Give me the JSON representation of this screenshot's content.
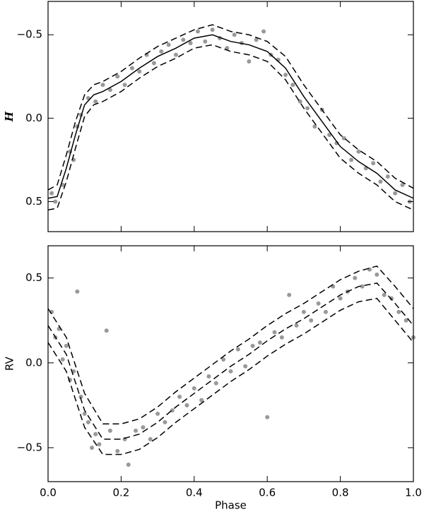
{
  "chart_data": [
    {
      "type": "scatter",
      "ylabel": "H",
      "color": "#999999",
      "xlim": [
        0,
        1
      ],
      "xticks": [
        0,
        0.2,
        0.4,
        0.6,
        0.8,
        1
      ],
      "show_xticklabels": false,
      "ylim": [
        0.68,
        -0.7
      ],
      "yticks": [
        {
          "value": -0.5,
          "label": "−0.5"
        },
        {
          "value": 0,
          "label": "0.0"
        },
        0.5
      ],
      "x": [
        0.01,
        0.02,
        0.04,
        0.06,
        0.07,
        0.08,
        0.09,
        0.11,
        0.13,
        0.15,
        0.17,
        0.19,
        0.21,
        0.23,
        0.25,
        0.27,
        0.29,
        0.31,
        0.33,
        0.35,
        0.37,
        0.39,
        0.41,
        0.43,
        0.45,
        0.47,
        0.49,
        0.51,
        0.53,
        0.55,
        0.57,
        0.59,
        0.61,
        0.63,
        0.65,
        0.67,
        0.69,
        0.71,
        0.73,
        0.75,
        0.77,
        0.79,
        0.81,
        0.83,
        0.85,
        0.87,
        0.89,
        0.91,
        0.93,
        0.95,
        0.97,
        0.99
      ],
      "y": [
        0.45,
        0.5,
        0.4,
        0.2,
        0.25,
        0.05,
        -0.02,
        -0.12,
        -0.1,
        -0.2,
        -0.17,
        -0.25,
        -0.2,
        -0.3,
        -0.28,
        -0.38,
        -0.33,
        -0.4,
        -0.44,
        -0.38,
        -0.47,
        -0.45,
        -0.52,
        -0.46,
        -0.53,
        -0.48,
        -0.42,
        -0.5,
        -0.45,
        -0.34,
        -0.47,
        -0.52,
        -0.38,
        -0.35,
        -0.26,
        -0.2,
        -0.1,
        -0.06,
        0.05,
        -0.05,
        0.1,
        0.15,
        0.12,
        0.25,
        0.2,
        0.3,
        0.27,
        0.38,
        0.35,
        0.45,
        0.4,
        0.5
      ],
      "curve_x": [
        0,
        0.025,
        0.05,
        0.075,
        0.1,
        0.125,
        0.15,
        0.2,
        0.25,
        0.3,
        0.35,
        0.4,
        0.45,
        0.5,
        0.55,
        0.6,
        0.65,
        0.7,
        0.75,
        0.8,
        0.85,
        0.9,
        0.95,
        1
      ],
      "curves": [
        {
          "color": "#000000",
          "dashed": false,
          "values": [
            0.48,
            0.47,
            0.3,
            0.1,
            -0.08,
            -0.14,
            -0.16,
            -0.22,
            -0.3,
            -0.37,
            -0.42,
            -0.48,
            -0.5,
            -0.46,
            -0.44,
            -0.4,
            -0.3,
            -0.13,
            0.02,
            0.17,
            0.26,
            0.33,
            0.43,
            0.48
          ]
        },
        {
          "color": "#000000",
          "dashed": true,
          "values": [
            0.43,
            0.4,
            0.22,
            0.02,
            -0.14,
            -0.2,
            -0.22,
            -0.28,
            -0.36,
            -0.43,
            -0.48,
            -0.53,
            -0.56,
            -0.52,
            -0.5,
            -0.46,
            -0.37,
            -0.2,
            -0.05,
            0.1,
            0.19,
            0.26,
            0.36,
            0.42
          ]
        },
        {
          "color": "#000000",
          "dashed": true,
          "values": [
            0.55,
            0.54,
            0.38,
            0.18,
            -0.01,
            -0.08,
            -0.1,
            -0.16,
            -0.24,
            -0.31,
            -0.36,
            -0.42,
            -0.44,
            -0.4,
            -0.38,
            -0.34,
            -0.23,
            -0.06,
            0.09,
            0.24,
            0.33,
            0.4,
            0.5,
            0.55
          ]
        }
      ]
    },
    {
      "type": "scatter",
      "ylabel": "RV",
      "xlabel": "Phase",
      "color": "#999999",
      "xlim": [
        0,
        1
      ],
      "xticks": [
        {
          "value": 0,
          "label": "0.0"
        },
        0.2,
        0.4,
        0.6,
        0.8,
        {
          "value": 1,
          "label": "1.0"
        }
      ],
      "show_xticklabels": true,
      "ylim": [
        -0.7,
        0.69
      ],
      "yticks": [
        {
          "value": -0.5,
          "label": "−0.5"
        },
        {
          "value": 0,
          "label": "0.0"
        },
        0.5
      ],
      "x": [
        0.01,
        0.02,
        0.03,
        0.04,
        0.05,
        0.06,
        0.07,
        0.08,
        0.09,
        0.1,
        0.11,
        0.12,
        0.13,
        0.14,
        0.16,
        0.17,
        0.19,
        0.21,
        0.22,
        0.24,
        0.26,
        0.28,
        0.3,
        0.32,
        0.34,
        0.36,
        0.38,
        0.4,
        0.42,
        0.44,
        0.46,
        0.48,
        0.5,
        0.52,
        0.54,
        0.56,
        0.58,
        0.6,
        0.62,
        0.64,
        0.66,
        0.68,
        0.7,
        0.72,
        0.74,
        0.76,
        0.78,
        0.8,
        0.82,
        0.84,
        0.86,
        0.88,
        0.9,
        0.92,
        0.94,
        0.96,
        0.98,
        1
      ],
      "y": [
        0.3,
        0.15,
        0.2,
        0.02,
        0.1,
        -0.1,
        -0.05,
        0.42,
        -0.2,
        -0.3,
        -0.35,
        -0.5,
        -0.42,
        -0.48,
        0.19,
        -0.4,
        -0.52,
        -0.45,
        -0.6,
        -0.4,
        -0.38,
        -0.45,
        -0.3,
        -0.35,
        -0.28,
        -0.2,
        -0.25,
        -0.15,
        -0.22,
        -0.08,
        -0.12,
        0.02,
        -0.05,
        0.08,
        -0.02,
        0.1,
        0.12,
        -0.32,
        0.18,
        0.15,
        0.4,
        0.22,
        0.3,
        0.25,
        0.35,
        0.3,
        0.45,
        0.38,
        0.42,
        0.5,
        0.45,
        0.55,
        0.52,
        0.4,
        0.38,
        0.3,
        0.25,
        0.15
      ],
      "curve_x": [
        0,
        0.05,
        0.1,
        0.15,
        0.2,
        0.25,
        0.3,
        0.35,
        0.4,
        0.45,
        0.5,
        0.55,
        0.6,
        0.65,
        0.7,
        0.75,
        0.8,
        0.85,
        0.9,
        0.95,
        1
      ],
      "curves": [
        {
          "color": "#000000",
          "dashed": true,
          "values": [
            0.22,
            0.05,
            -0.28,
            -0.45,
            -0.45,
            -0.42,
            -0.35,
            -0.26,
            -0.18,
            -0.1,
            -0.02,
            0.05,
            0.13,
            0.2,
            0.26,
            0.33,
            0.4,
            0.45,
            0.47,
            0.35,
            0.22
          ]
        },
        {
          "color": "#000000",
          "dashed": true,
          "values": [
            0.32,
            0.15,
            -0.18,
            -0.36,
            -0.36,
            -0.33,
            -0.26,
            -0.17,
            -0.09,
            -0.01,
            0.07,
            0.14,
            0.22,
            0.29,
            0.35,
            0.42,
            0.49,
            0.54,
            0.57,
            0.45,
            0.32
          ]
        },
        {
          "color": "#000000",
          "dashed": true,
          "values": [
            0.12,
            -0.05,
            -0.38,
            -0.54,
            -0.54,
            -0.51,
            -0.44,
            -0.35,
            -0.27,
            -0.19,
            -0.11,
            -0.04,
            0.04,
            0.11,
            0.17,
            0.24,
            0.31,
            0.36,
            0.38,
            0.25,
            0.12
          ]
        }
      ]
    }
  ]
}
